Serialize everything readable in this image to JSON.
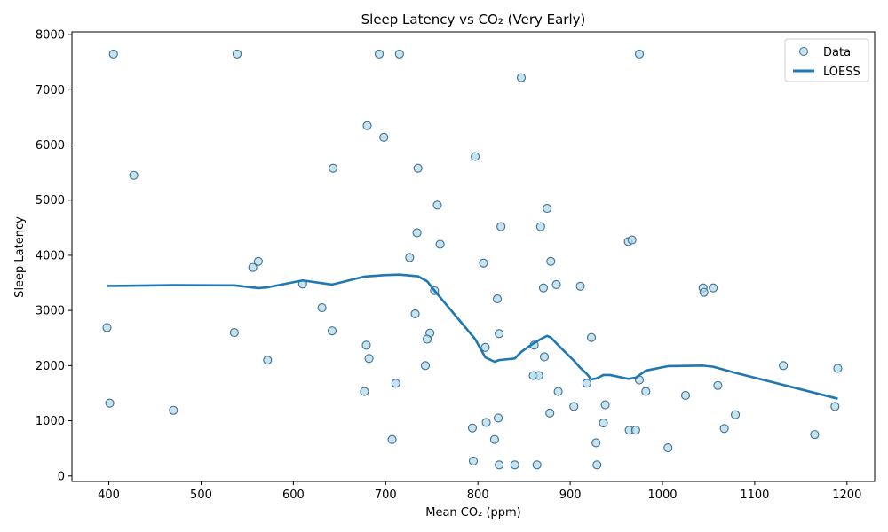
{
  "chart_data": {
    "type": "scatter",
    "title": "Sleep Latency vs CO₂ (Very Early)",
    "xlabel": "Mean CO₂ (ppm)",
    "ylabel": "Sleep Latency",
    "xlim": [
      360,
      1230
    ],
    "ylim": [
      -100,
      8050
    ],
    "xticks": [
      400,
      500,
      600,
      700,
      800,
      900,
      1000,
      1100,
      1200
    ],
    "yticks": [
      0,
      1000,
      2000,
      3000,
      4000,
      5000,
      6000,
      7000,
      8000
    ],
    "grid": false,
    "legend_position": "top-right",
    "colors": {
      "marker_fill": "#add8e6",
      "marker_edge": "#3f6e94",
      "line": "#1f77b4"
    },
    "series": [
      {
        "name": "Data",
        "kind": "scatter",
        "points": [
          [
            405,
            7650
          ],
          [
            539,
            7650
          ],
          [
            693,
            7650
          ],
          [
            715,
            7650
          ],
          [
            975,
            7650
          ],
          [
            847,
            7220
          ],
          [
            680,
            6350
          ],
          [
            698,
            6140
          ],
          [
            797,
            5790
          ],
          [
            427,
            5450
          ],
          [
            643,
            5580
          ],
          [
            735,
            5580
          ],
          [
            756,
            4910
          ],
          [
            875,
            4850
          ],
          [
            825,
            4520
          ],
          [
            868,
            4520
          ],
          [
            734,
            4410
          ],
          [
            759,
            4200
          ],
          [
            963,
            4250
          ],
          [
            967,
            4280
          ],
          [
            726,
            3960
          ],
          [
            562,
            3890
          ],
          [
            556,
            3780
          ],
          [
            806,
            3860
          ],
          [
            879,
            3890
          ],
          [
            610,
            3480
          ],
          [
            885,
            3470
          ],
          [
            911,
            3440
          ],
          [
            871,
            3410
          ],
          [
            1044,
            3410
          ],
          [
            1055,
            3410
          ],
          [
            1045,
            3330
          ],
          [
            753,
            3360
          ],
          [
            821,
            3210
          ],
          [
            631,
            3050
          ],
          [
            732,
            2940
          ],
          [
            398,
            2690
          ],
          [
            536,
            2600
          ],
          [
            642,
            2630
          ],
          [
            748,
            2590
          ],
          [
            823,
            2580
          ],
          [
            923,
            2510
          ],
          [
            745,
            2480
          ],
          [
            679,
            2370
          ],
          [
            808,
            2330
          ],
          [
            861,
            2370
          ],
          [
            682,
            2130
          ],
          [
            872,
            2160
          ],
          [
            572,
            2100
          ],
          [
            743,
            2000
          ],
          [
            1131,
            2000
          ],
          [
            1190,
            1950
          ],
          [
            860,
            1820
          ],
          [
            866,
            1820
          ],
          [
            975,
            1740
          ],
          [
            918,
            1680
          ],
          [
            1060,
            1640
          ],
          [
            711,
            1680
          ],
          [
            677,
            1530
          ],
          [
            887,
            1530
          ],
          [
            982,
            1530
          ],
          [
            1025,
            1460
          ],
          [
            401,
            1320
          ],
          [
            938,
            1290
          ],
          [
            904,
            1260
          ],
          [
            1187,
            1260
          ],
          [
            470,
            1190
          ],
          [
            878,
            1140
          ],
          [
            1079,
            1110
          ],
          [
            822,
            1050
          ],
          [
            809,
            970
          ],
          [
            936,
            960
          ],
          [
            794,
            870
          ],
          [
            964,
            830
          ],
          [
            971,
            830
          ],
          [
            1067,
            860
          ],
          [
            1165,
            750
          ],
          [
            707,
            660
          ],
          [
            818,
            660
          ],
          [
            928,
            600
          ],
          [
            1006,
            510
          ],
          [
            795,
            270
          ],
          [
            823,
            200
          ],
          [
            840,
            200
          ],
          [
            864,
            200
          ],
          [
            929,
            200
          ]
        ]
      },
      {
        "name": "LOESS",
        "kind": "line",
        "points": [
          [
            398,
            3445
          ],
          [
            470,
            3460
          ],
          [
            536,
            3455
          ],
          [
            562,
            3405
          ],
          [
            572,
            3420
          ],
          [
            610,
            3545
          ],
          [
            642,
            3470
          ],
          [
            677,
            3615
          ],
          [
            698,
            3640
          ],
          [
            715,
            3650
          ],
          [
            735,
            3620
          ],
          [
            745,
            3530
          ],
          [
            753,
            3360
          ],
          [
            797,
            2480
          ],
          [
            808,
            2150
          ],
          [
            818,
            2070
          ],
          [
            823,
            2100
          ],
          [
            840,
            2130
          ],
          [
            847,
            2250
          ],
          [
            860,
            2400
          ],
          [
            868,
            2480
          ],
          [
            875,
            2540
          ],
          [
            879,
            2510
          ],
          [
            887,
            2370
          ],
          [
            904,
            2090
          ],
          [
            911,
            1960
          ],
          [
            918,
            1850
          ],
          [
            923,
            1750
          ],
          [
            929,
            1770
          ],
          [
            936,
            1830
          ],
          [
            943,
            1830
          ],
          [
            963,
            1760
          ],
          [
            971,
            1780
          ],
          [
            982,
            1910
          ],
          [
            1006,
            1990
          ],
          [
            1044,
            2000
          ],
          [
            1055,
            1980
          ],
          [
            1079,
            1870
          ],
          [
            1131,
            1650
          ],
          [
            1190,
            1400
          ]
        ]
      }
    ]
  }
}
